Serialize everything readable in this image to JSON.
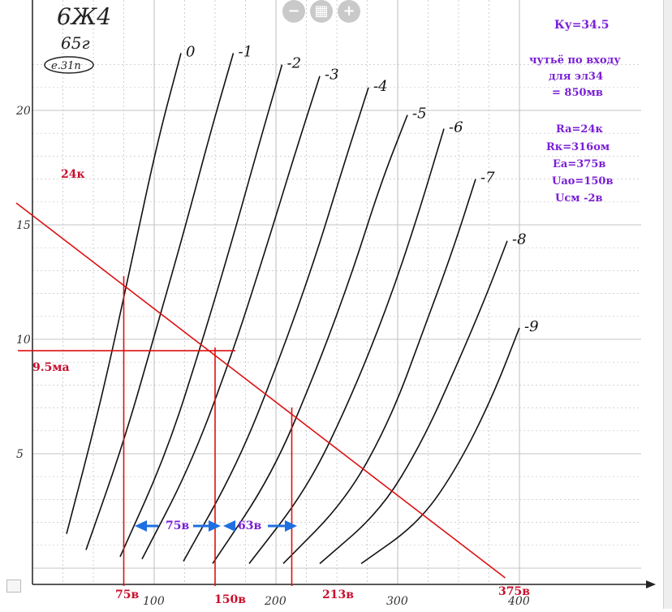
{
  "viewer": {
    "zoom_out": "−",
    "fit": "▦",
    "zoom_in": "+"
  },
  "header": {
    "tube": "6Ж4",
    "year": "65г",
    "note": "е.31п"
  },
  "info": {
    "gain": "Ку=34.5",
    "sens_1": "чутьё по входу",
    "sens_2": "для эл34",
    "sens_3": "= 850мв",
    "ra": "Ra=24к",
    "rk": "Rк=316ом",
    "ea": "Ea=375в",
    "uao": "Uao=150в",
    "ucm": "Uсм -2в"
  },
  "annotations": {
    "load_label": "24к",
    "current": "9.5ма",
    "v75": "75в",
    "v150": "150в",
    "v213": "213в",
    "v375": "375в",
    "delta_left": "75в",
    "delta_right": "63в"
  },
  "chart_data": {
    "type": "line",
    "title": "",
    "xlabel": "",
    "ylabel": "",
    "xlim": [
      0,
      420
    ],
    "ylim": [
      0,
      22.5
    ],
    "x_ticks": [
      "100",
      "200",
      "300",
      "400"
    ],
    "y_ticks": [
      "5",
      "10",
      "15",
      "20"
    ],
    "grid": true,
    "series": [
      {
        "name": "0",
        "x": [
          28,
          55,
          80,
          102,
          122
        ],
        "y": [
          1.5,
          7,
          13,
          18.5,
          22.5
        ]
      },
      {
        "name": "-1",
        "x": [
          44,
          75,
          102,
          126,
          146,
          165
        ],
        "y": [
          0.8,
          5.5,
          10.5,
          15,
          19,
          22.5
        ]
      },
      {
        "name": "-2",
        "x": [
          72,
          110,
          140,
          165,
          186,
          205
        ],
        "y": [
          0.5,
          5,
          10,
          14.5,
          18.5,
          22
        ]
      },
      {
        "name": "-3",
        "x": [
          90,
          130,
          165,
          192,
          215,
          236
        ],
        "y": [
          0.4,
          4.5,
          9.5,
          14,
          18,
          21.5
        ]
      },
      {
        "name": "-4",
        "x": [
          124,
          168,
          202,
          232,
          255,
          276
        ],
        "y": [
          0.3,
          4.5,
          9,
          13.5,
          17.5,
          21
        ]
      },
      {
        "name": "-5",
        "x": [
          148,
          196,
          232,
          262,
          286,
          308
        ],
        "y": [
          0.2,
          4,
          8.5,
          12.8,
          16.8,
          19.8
        ]
      },
      {
        "name": "-6",
        "x": [
          178,
          226,
          262,
          292,
          316,
          338
        ],
        "y": [
          0.2,
          3.5,
          7.5,
          11.5,
          15.3,
          19.2
        ]
      },
      {
        "name": "-7",
        "x": [
          206,
          258,
          294,
          322,
          346,
          364
        ],
        "y": [
          0.2,
          3,
          6.5,
          10.5,
          14,
          17
        ]
      },
      {
        "name": "-8",
        "x": [
          236,
          286,
          320,
          348,
          372,
          390
        ],
        "y": [
          0.2,
          2.5,
          5.5,
          8.8,
          11.8,
          14.3
        ]
      },
      {
        "name": "-9",
        "x": [
          270,
          318,
          350,
          378,
          400
        ],
        "y": [
          0.2,
          2,
          4.5,
          7.5,
          10.5
        ]
      }
    ],
    "load_line": {
      "name": "24к",
      "x": [
        0,
        375
      ],
      "y": [
        15.6,
        0
      ]
    },
    "operating_point": {
      "x": 150,
      "y": 9.5
    },
    "verticals": [
      75,
      150,
      213
    ],
    "horizontal": 9.5
  }
}
